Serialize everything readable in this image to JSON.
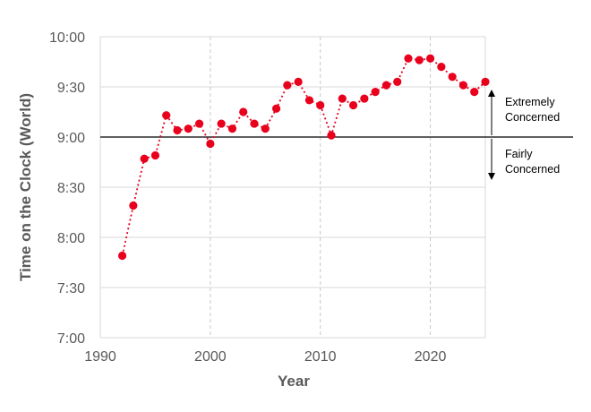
{
  "chart_data": {
    "type": "scatter",
    "title": "",
    "xlabel": "Year",
    "ylabel": "Time on the Clock (World)",
    "xlim": [
      1990,
      2025
    ],
    "ylim": [
      "7:00",
      "10:00"
    ],
    "x_ticks": [
      1990,
      2000,
      2010,
      2020
    ],
    "x_tick_labels": [
      "1990",
      "2000",
      "2010",
      "2020"
    ],
    "y_ticks": [
      "7:00",
      "7:30",
      "8:00",
      "8:30",
      "9:00",
      "9:30",
      "10:00"
    ],
    "y_tick_labels": [
      "7:00",
      "7:30",
      "8:00",
      "8:30",
      "9:00",
      "9:30",
      "10:00"
    ],
    "grid": true,
    "x": [
      1992,
      1993,
      1994,
      1995,
      1996,
      1997,
      1998,
      1999,
      2000,
      2001,
      2002,
      2003,
      2004,
      2005,
      2006,
      2007,
      2008,
      2009,
      2010,
      2011,
      2012,
      2013,
      2014,
      2015,
      2016,
      2017,
      2018,
      2019,
      2020,
      2021,
      2022,
      2023,
      2024,
      2025
    ],
    "y": [
      "7:49",
      "8:19",
      "8:47",
      "8:49",
      "9:13",
      "9:04",
      "9:05",
      "9:08",
      "8:56",
      "9:08",
      "9:05",
      "9:15",
      "9:08",
      "9:05",
      "9:17",
      "9:31",
      "9:33",
      "9:22",
      "9:19",
      "9:01",
      "9:23",
      "9:19",
      "9:23",
      "9:27",
      "9:31",
      "9:33",
      "9:47",
      "9:46",
      "9:47",
      "9:42",
      "9:36",
      "9:31",
      "9:27",
      "9:33"
    ],
    "reference_line": {
      "value": "9:00"
    },
    "annotations": [
      {
        "text": [
          "Extremely",
          "Concerned"
        ]
      },
      {
        "text": [
          "Fairly",
          "Concerned"
        ]
      }
    ],
    "colors": {
      "points": "#e8001c",
      "line": "#e8001c",
      "axis_text": "#595959",
      "grid": "#d9d9d9",
      "reference": "#000000"
    }
  }
}
